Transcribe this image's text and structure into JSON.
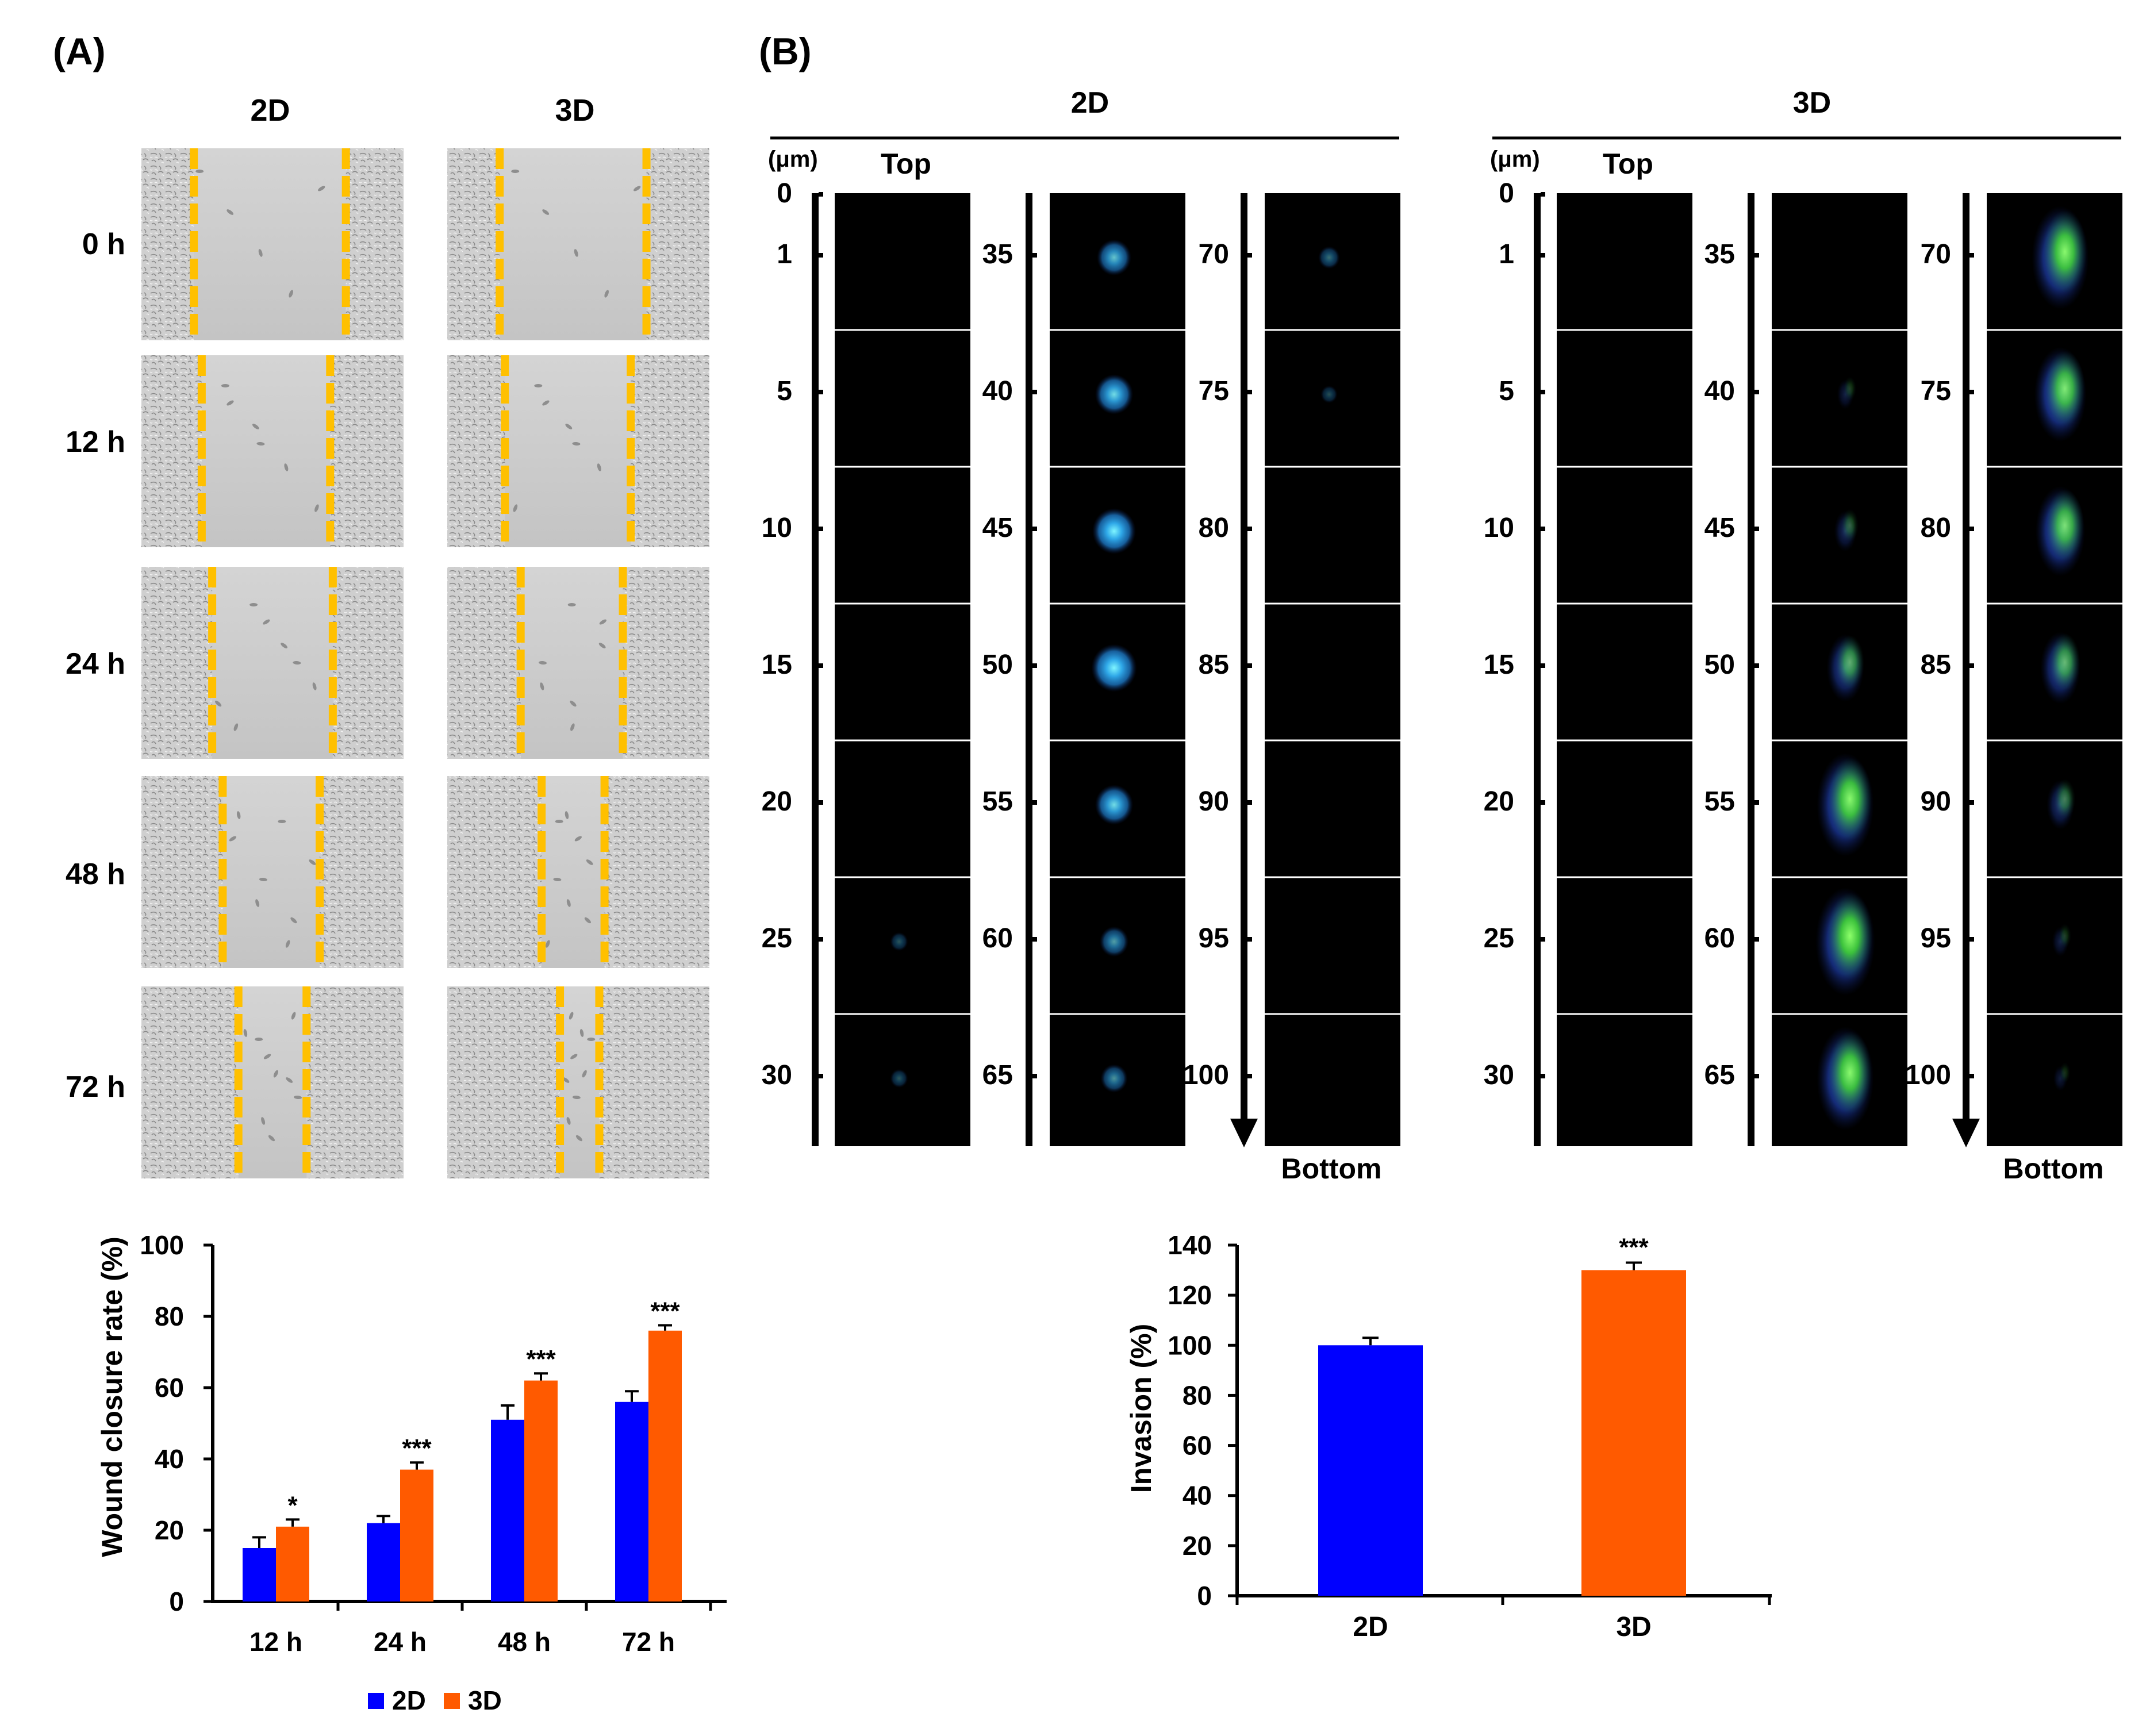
{
  "panel_a": {
    "label": "(A)",
    "col_headers": [
      "2D",
      "3D"
    ],
    "time_labels": [
      "0 h",
      "12 h",
      "24 h",
      "48 h",
      "72 h"
    ],
    "scratch_images": [
      {
        "time": "0 h",
        "culture": "2D"
      },
      {
        "time": "0 h",
        "culture": "3D"
      },
      {
        "time": "12 h",
        "culture": "2D"
      },
      {
        "time": "12 h",
        "culture": "3D"
      },
      {
        "time": "24 h",
        "culture": "2D"
      },
      {
        "time": "24 h",
        "culture": "3D"
      },
      {
        "time": "48 h",
        "culture": "2D"
      },
      {
        "time": "48 h",
        "culture": "3D"
      },
      {
        "time": "72 h",
        "culture": "2D"
      },
      {
        "time": "72 h",
        "culture": "3D"
      }
    ]
  },
  "panel_b": {
    "label": "(B)",
    "groups": [
      {
        "title": "2D",
        "unit": "(μm)",
        "top_label": "Top",
        "bottom_label": "Bottom",
        "columns": [
          {
            "depths": [
              "0",
              "1",
              "5",
              "10",
              "15",
              "20",
              "25",
              "30"
            ],
            "signal": [
              0.0,
              0.0,
              0.0,
              0.0,
              0.0,
              0.0,
              0.05,
              0.05
            ]
          },
          {
            "depths": [
              "35",
              "40",
              "45",
              "50",
              "55",
              "60",
              "65"
            ],
            "signal": [
              0.5,
              0.6,
              0.75,
              0.8,
              0.6,
              0.35,
              0.3
            ]
          },
          {
            "depths": [
              "70",
              "75",
              "80",
              "85",
              "90",
              "95",
              "100"
            ],
            "signal": [
              0.15,
              0.02,
              0.0,
              0.0,
              0.0,
              0.0,
              0.0
            ]
          }
        ]
      },
      {
        "title": "3D",
        "unit": "(μm)",
        "top_label": "Top",
        "bottom_label": "Bottom",
        "columns": [
          {
            "depths": [
              "0",
              "1",
              "5",
              "10",
              "15",
              "20",
              "25",
              "30"
            ],
            "signal": [
              0.0,
              0.0,
              0.0,
              0.0,
              0.0,
              0.0,
              0.0,
              0.0
            ]
          },
          {
            "depths": [
              "35",
              "40",
              "45",
              "50",
              "55",
              "60",
              "65"
            ],
            "signal": [
              0.0,
              0.08,
              0.2,
              0.5,
              0.9,
              0.95,
              0.9
            ]
          },
          {
            "depths": [
              "70",
              "75",
              "80",
              "85",
              "90",
              "95",
              "100"
            ],
            "signal": [
              0.9,
              0.8,
              0.75,
              0.55,
              0.3,
              0.08,
              0.03
            ]
          }
        ]
      }
    ]
  },
  "chart_data": [
    {
      "type": "bar",
      "title": "",
      "categories": [
        "12 h",
        "24 h",
        "48 h",
        "72 h"
      ],
      "series": [
        {
          "name": "2D",
          "color": "#0000ff",
          "values": [
            15,
            22,
            51,
            56
          ],
          "errors": [
            3,
            2,
            4,
            3
          ]
        },
        {
          "name": "3D",
          "color": "#ff5a00",
          "values": [
            21,
            37,
            62,
            76
          ],
          "errors": [
            2,
            2,
            2,
            1.5
          ]
        }
      ],
      "significance": [
        "*",
        "***",
        "***",
        "***"
      ],
      "xlabel": "",
      "ylabel": "Wound closure rate (%)",
      "ylim": [
        0,
        100
      ],
      "yticks": [
        0,
        20,
        40,
        60,
        80,
        100
      ],
      "legend": "bottom-center"
    },
    {
      "type": "bar",
      "title": "",
      "categories": [
        "2D",
        "3D"
      ],
      "values": [
        100,
        130
      ],
      "errors": [
        3,
        3
      ],
      "colors": [
        "#0000ff",
        "#ff5a00"
      ],
      "significance": [
        "",
        "***"
      ],
      "xlabel": "",
      "ylabel": "Invasion (%)",
      "ylim": [
        0,
        140
      ],
      "yticks": [
        0,
        20,
        40,
        60,
        80,
        100,
        120,
        140
      ]
    }
  ]
}
